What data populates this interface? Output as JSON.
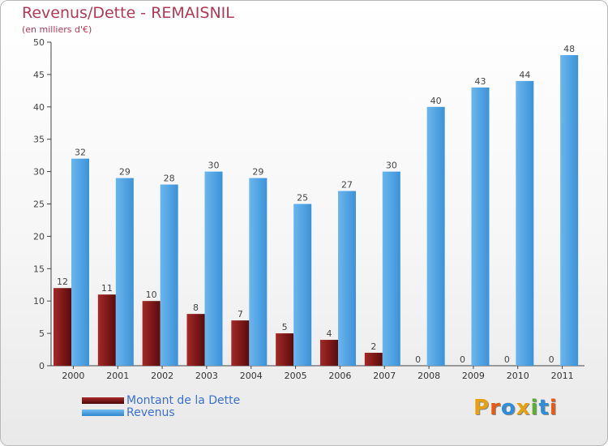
{
  "title": "Revenus/Dette - REMAISNIL",
  "subtitle": "(en milliers d'€)",
  "colors": {
    "debt": "#7a1414",
    "revenue": "#4fa3e3",
    "title": "#b03a55",
    "legend_text": "#3d6fd0"
  },
  "chart_data": {
    "type": "bar",
    "categories": [
      "2000",
      "2001",
      "2002",
      "2003",
      "2004",
      "2005",
      "2006",
      "2007",
      "2008",
      "2009",
      "2010",
      "2011"
    ],
    "series": [
      {
        "name": "Montant de la Dette",
        "values": [
          12,
          11,
          10,
          8,
          7,
          5,
          4,
          2,
          0,
          0,
          0,
          0
        ]
      },
      {
        "name": "Revenus",
        "values": [
          32,
          29,
          28,
          30,
          29,
          25,
          27,
          30,
          40,
          43,
          44,
          48
        ]
      }
    ],
    "ylim": [
      0,
      50
    ],
    "yticks": [
      0,
      5,
      10,
      15,
      20,
      25,
      30,
      35,
      40,
      45,
      50
    ],
    "grid": false,
    "legend": "bottom-left",
    "data_labels": true
  },
  "logo": {
    "text": "Proxiti",
    "letters": [
      "P",
      "r",
      "o",
      "x",
      "i",
      "t",
      "i"
    ]
  }
}
